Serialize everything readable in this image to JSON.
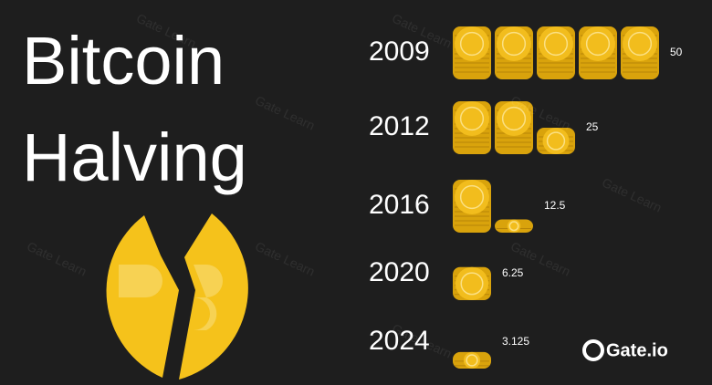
{
  "chart_data": {
    "type": "pictograph",
    "title": "Bitcoin Halving",
    "categories": [
      "2009",
      "2012",
      "2016",
      "2020",
      "2024"
    ],
    "values": [
      50,
      25,
      12.5,
      6.25,
      3.125
    ],
    "unit_per_stack": 10,
    "color": "#f2bd1d",
    "watermark": "Gate Learn",
    "brand": "Gate.io"
  }
}
